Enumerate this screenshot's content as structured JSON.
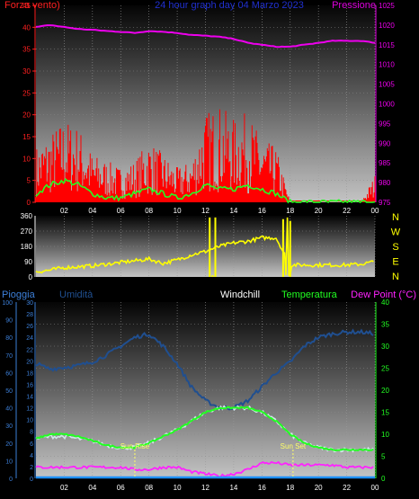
{
  "colors": {
    "background": "#000000",
    "wind": "#ff0000",
    "gust": "#ff0000",
    "pressure": "#ee00ee",
    "direction": "#ffff00",
    "humidity": "#204f90",
    "temperature": "#22ff22",
    "dewpoint": "#ff22ff",
    "rain": "#1e90ff",
    "windchill": "#cfe8e8",
    "sun": "#ffff66",
    "label_red": "#ff2020",
    "label_blue": "#3c7fd8",
    "label_green": "#22ff22",
    "label_magenta": "#ff22ff",
    "label_white": "#ffffff",
    "label_pressure": "#dd00dd",
    "header_blue": "#2030d0"
  },
  "time_axis": {
    "labels": [
      "02",
      "04",
      "06",
      "08",
      "10",
      "12",
      "14",
      "16",
      "18",
      "20",
      "22",
      "00"
    ]
  },
  "chart_data": [
    {
      "type": "line",
      "title": "24 hour graph day  04 Marzo 2023",
      "left_label": "Forza vento)",
      "right_label": "Pressione",
      "left_ticks": [
        "45",
        "40",
        "35",
        "30",
        "25",
        "20",
        "15",
        "10",
        "5",
        "0"
      ],
      "left_ylim": [
        0,
        45
      ],
      "right_ticks": [
        "1025",
        "1020",
        "1015",
        "1010",
        "1005",
        "1000",
        "995",
        "990",
        "985",
        "980",
        "975"
      ],
      "right_ylim": [
        975,
        1025
      ],
      "x": [
        0,
        1,
        2,
        3,
        4,
        5,
        6,
        7,
        8,
        9,
        10,
        11,
        12,
        13,
        14,
        15,
        16,
        17,
        18,
        19,
        20,
        21,
        22,
        23,
        24
      ],
      "series": [
        {
          "key": "wind_gust",
          "axis": "left",
          "values": [
            8,
            10,
            12,
            11,
            7,
            6,
            5,
            6,
            9,
            7,
            5,
            6,
            13,
            14,
            12,
            13,
            9,
            8,
            0,
            0,
            0,
            0,
            0,
            0,
            4
          ]
        },
        {
          "key": "wind_avg",
          "axis": "left",
          "values": [
            2,
            4,
            5,
            4,
            2,
            1,
            1,
            2,
            3,
            2,
            1,
            2,
            4,
            3,
            3,
            4,
            3,
            2,
            0,
            0,
            0,
            0,
            0,
            0,
            0
          ]
        },
        {
          "key": "pressure",
          "axis": "right",
          "values": [
            1019.5,
            1020,
            1019.5,
            1019,
            1018.8,
            1018.5,
            1018.3,
            1018,
            1018.5,
            1018.3,
            1018,
            1017.5,
            1017.3,
            1017,
            1016.5,
            1015.5,
            1015,
            1014.5,
            1014.5,
            1015,
            1015.5,
            1016,
            1016,
            1016,
            1015.5
          ]
        }
      ]
    },
    {
      "type": "line",
      "left_ticks": [
        "360",
        "270",
        "180",
        "90",
        "0"
      ],
      "left_ylim": [
        0,
        360
      ],
      "right_ticks": [
        "N",
        "W",
        "S",
        "E",
        "N"
      ],
      "x": [
        0,
        1,
        2,
        3,
        4,
        5,
        6,
        7,
        8,
        9,
        10,
        11,
        12,
        13,
        14,
        15,
        16,
        17,
        18,
        19,
        20,
        21,
        22,
        23,
        24
      ],
      "series": [
        {
          "key": "wind_direction",
          "axis": "left",
          "values": [
            30,
            40,
            55,
            60,
            65,
            75,
            85,
            95,
            105,
            80,
            100,
            130,
            150,
            180,
            200,
            210,
            230,
            230,
            70,
            70,
            70,
            70,
            70,
            75,
            90
          ]
        }
      ]
    },
    {
      "type": "line",
      "legend": [
        "Pioggia",
        "Umidità",
        "Windchill",
        "Temperatura",
        "Dew Point (°C)"
      ],
      "rain_ticks": [
        "100",
        "90",
        "80",
        "70",
        "60",
        "50",
        "40",
        "30",
        "20",
        "10",
        "0"
      ],
      "humidity_ticks": [
        "30",
        "28",
        "26",
        "24",
        "22",
        "20",
        "18",
        "16",
        "14",
        "12",
        "10",
        "8",
        "6",
        "4",
        "2",
        "0"
      ],
      "right_ticks": [
        "40",
        "35",
        "30",
        "25",
        "20",
        "15",
        "10",
        "5",
        "0"
      ],
      "right_ylim": [
        0,
        40
      ],
      "x": [
        0,
        1,
        2,
        3,
        4,
        5,
        6,
        7,
        8,
        9,
        10,
        11,
        12,
        13,
        14,
        15,
        16,
        17,
        18,
        19,
        20,
        21,
        22,
        23,
        24
      ],
      "series": [
        {
          "key": "humidity",
          "axis": "rain",
          "values": [
            65,
            62,
            63,
            64,
            66,
            70,
            75,
            80,
            82,
            75,
            65,
            52,
            44,
            40,
            40,
            44,
            52,
            60,
            66,
            75,
            80,
            82,
            83,
            83,
            82
          ]
        },
        {
          "key": "temperature",
          "axis": "right",
          "values": [
            9,
            10,
            10,
            9.5,
            8.5,
            7.5,
            7,
            7,
            8,
            9.5,
            11,
            13,
            15,
            16,
            16,
            16,
            15,
            13,
            10,
            8,
            7,
            6.5,
            6.5,
            6.5,
            6.5
          ]
        },
        {
          "key": "windchill",
          "axis": "right",
          "values": [
            9,
            9.5,
            9.5,
            9,
            8.5,
            7.5,
            7,
            7,
            8,
            9.5,
            11,
            13,
            15,
            16,
            16,
            16,
            15,
            13,
            10,
            8,
            7,
            6.5,
            6.5,
            6.5,
            6.5
          ]
        },
        {
          "key": "dewpoint",
          "axis": "right",
          "values": [
            2.5,
            2.5,
            2.5,
            2.5,
            2.5,
            2.5,
            2.5,
            2,
            2,
            2.5,
            2.5,
            1.5,
            1,
            0.5,
            1,
            2,
            3.5,
            3.5,
            3,
            3,
            3,
            3,
            2.5,
            2.5,
            2.5
          ]
        },
        {
          "key": "rain",
          "axis": "rain",
          "values": [
            0,
            0,
            0,
            0,
            0,
            0,
            0,
            0,
            0,
            0,
            0,
            0,
            0,
            0,
            0,
            0,
            0,
            0,
            0,
            0,
            0,
            0,
            0,
            0,
            0
          ]
        }
      ],
      "sun_rise": {
        "label": "Sun Rise",
        "x": 7
      },
      "sun_set": {
        "label": "Sun Set",
        "x": 18.2
      }
    }
  ]
}
